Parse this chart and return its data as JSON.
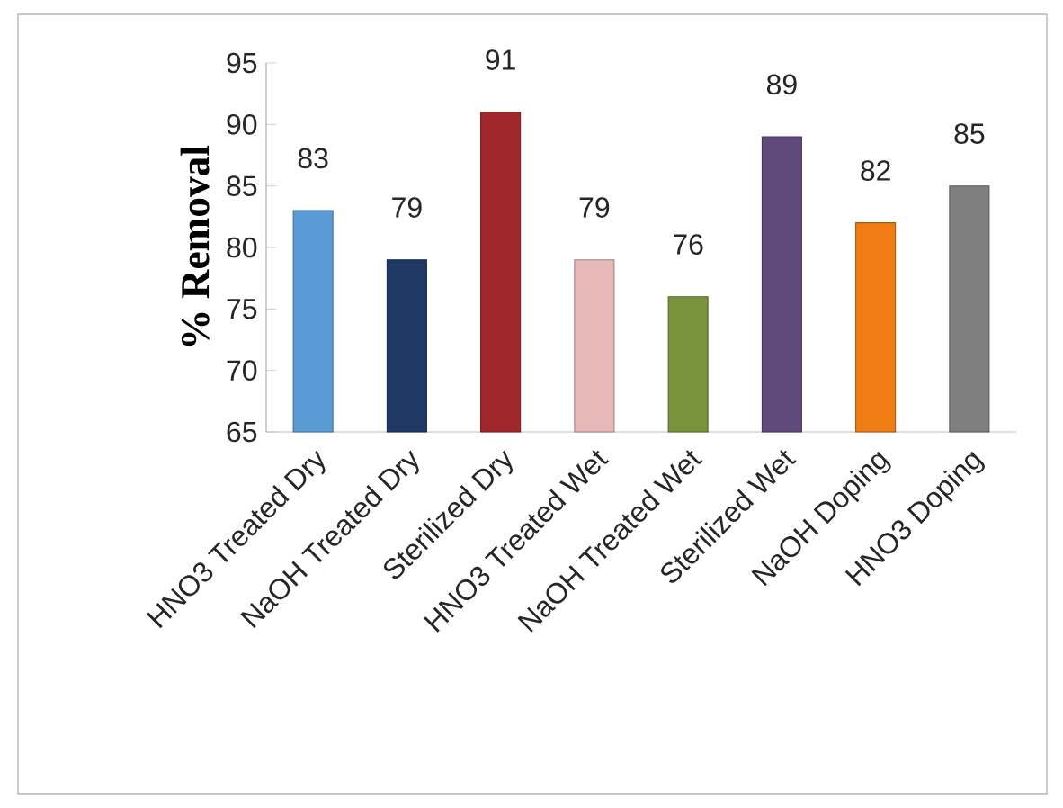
{
  "chart_data": {
    "type": "bar",
    "ylabel": "% Removal",
    "categories": [
      "HNO3 Treated Dry",
      "NaOH Treated Dry",
      "Sterilized Dry",
      "HNO3 Treated Wet",
      "NaOH Treated Wet",
      "Sterilized Wet",
      "NaOH Doping",
      "HNO3 Doping"
    ],
    "values": [
      83,
      79,
      91,
      79,
      76,
      89,
      82,
      85
    ],
    "colors": [
      "#5b9bd5",
      "#1f3864",
      "#a0282d",
      "#e6b9b8",
      "#77933c",
      "#604a7b",
      "#f07c14",
      "#7f7f7f"
    ],
    "ylim": [
      65,
      95
    ],
    "yticks": [
      65,
      70,
      75,
      80,
      85,
      90,
      95
    ],
    "data_labels": true
  }
}
